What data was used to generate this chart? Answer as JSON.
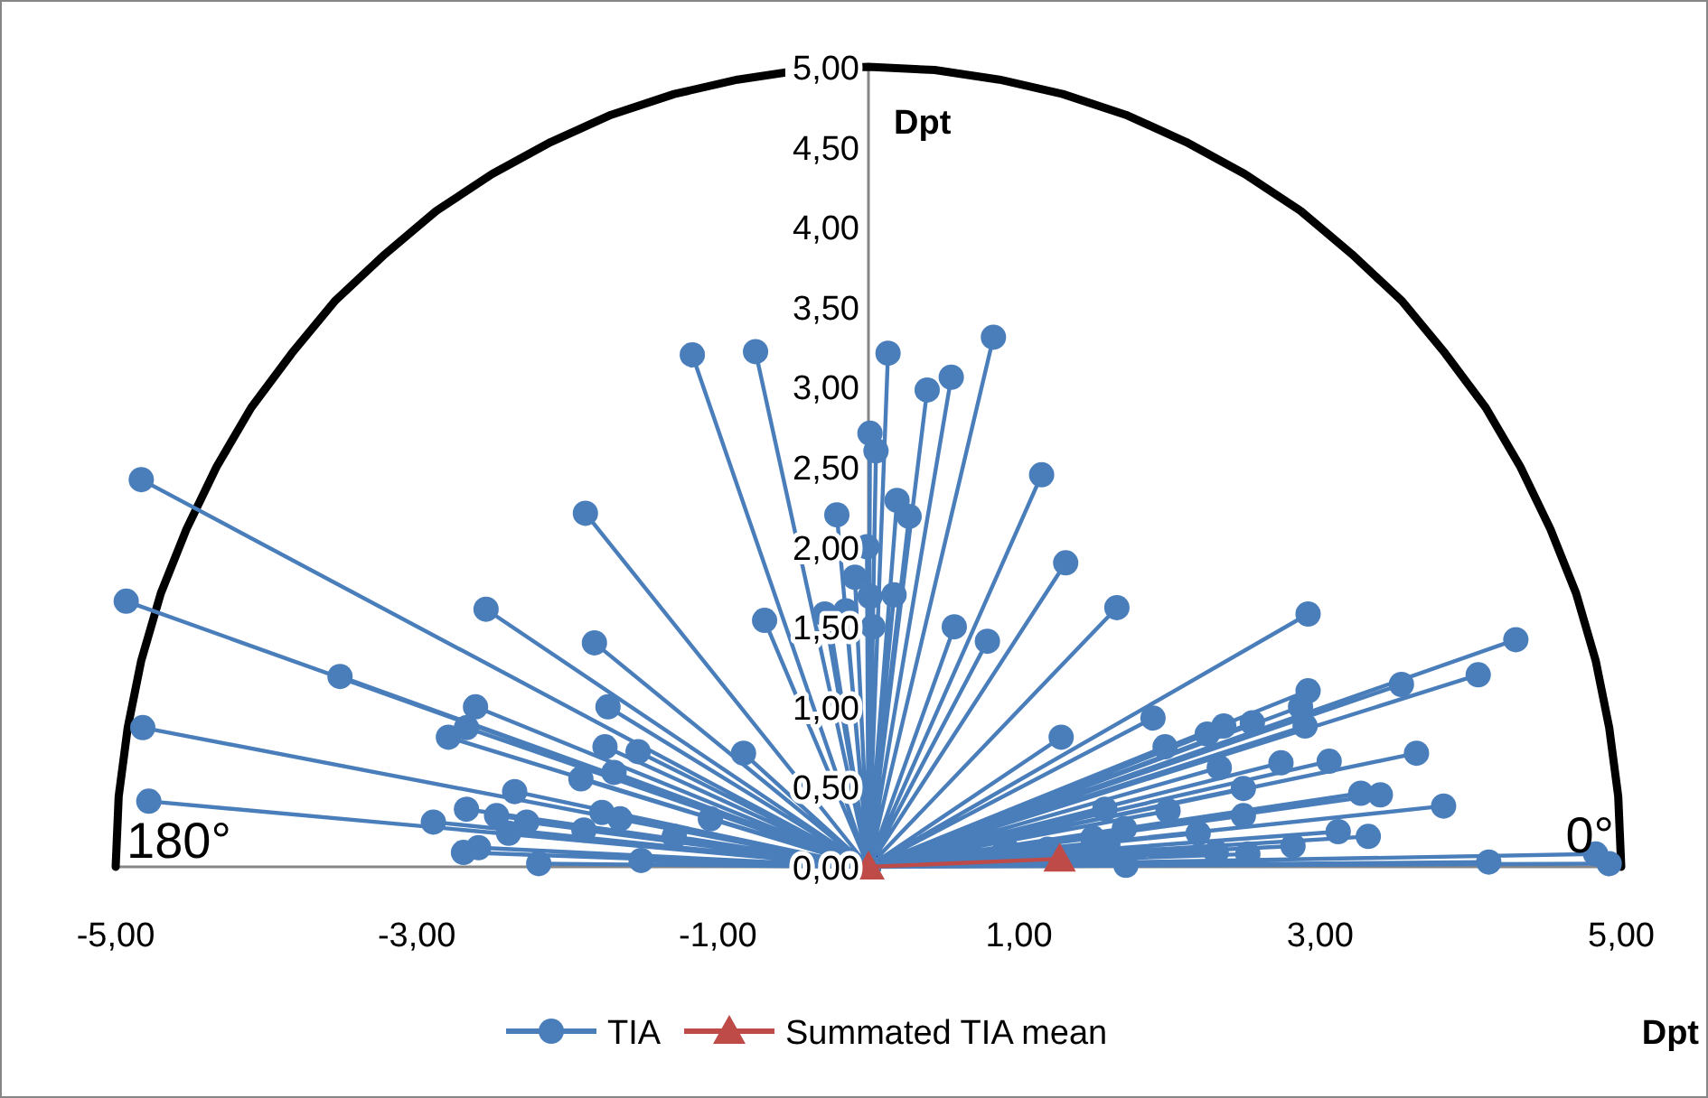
{
  "chart_data": {
    "type": "line",
    "xlabel": "Dpt",
    "ylabel": "Dpt",
    "annotations": [
      "180°",
      "0°"
    ],
    "xlim": [
      -5,
      5
    ],
    "ylim": [
      0,
      5
    ],
    "xticks": [
      {
        "value": -5,
        "label": "-5,00"
      },
      {
        "value": -3,
        "label": "-3,00"
      },
      {
        "value": -1,
        "label": "-1,00"
      },
      {
        "value": 1,
        "label": "1,00"
      },
      {
        "value": 3,
        "label": "3,00"
      },
      {
        "value": 5,
        "label": "5,00"
      }
    ],
    "yticks": [
      {
        "value": 0,
        "label": "0,00"
      },
      {
        "value": 0.5,
        "label": "0,50"
      },
      {
        "value": 1,
        "label": "1,00"
      },
      {
        "value": 1.5,
        "label": "1,50"
      },
      {
        "value": 2,
        "label": "2,00"
      },
      {
        "value": 2.5,
        "label": "2,50"
      },
      {
        "value": 3,
        "label": "3,00"
      },
      {
        "value": 3.5,
        "label": "3,50"
      },
      {
        "value": 4,
        "label": "4,00"
      },
      {
        "value": 4.5,
        "label": "4,50"
      },
      {
        "value": 5,
        "label": "5,00"
      }
    ],
    "grid": false,
    "legend": "bottom",
    "series": [
      {
        "type": "line",
        "color": "#000000",
        "marker": "none",
        "x": [
          5,
          4.98,
          4.92,
          4.83,
          4.7,
          4.53,
          4.33,
          4.1,
          3.83,
          3.54,
          3.21,
          2.87,
          2.5,
          2.11,
          1.71,
          1.29,
          0.87,
          0.44,
          0,
          -0.44,
          -0.87,
          -1.29,
          -1.71,
          -2.11,
          -2.5,
          -2.87,
          -3.21,
          -3.54,
          -3.83,
          -4.1,
          -4.33,
          -4.53,
          -4.7,
          -4.83,
          -4.92,
          -4.98,
          -5
        ],
        "values": [
          0,
          0.44,
          0.87,
          1.29,
          1.71,
          2.11,
          2.5,
          2.87,
          3.21,
          3.54,
          3.83,
          4.1,
          4.33,
          4.53,
          4.7,
          4.83,
          4.92,
          4.98,
          5,
          4.98,
          4.92,
          4.83,
          4.7,
          4.53,
          4.33,
          4.1,
          3.83,
          3.54,
          3.21,
          2.87,
          2.5,
          2.11,
          1.71,
          1.29,
          0.87,
          0.44,
          0
        ]
      },
      {
        "type": "line",
        "name": "TIA",
        "color": "#4a7ebb",
        "marker": "circle",
        "x": [
          0,
          -4.83,
          0,
          -4.93,
          0,
          -3.51,
          0,
          -4.82,
          0,
          -4.78,
          0,
          -1.88,
          0,
          -2.54,
          0,
          -1.82,
          0,
          -1.73,
          0,
          -2.61,
          0,
          -2.79,
          0,
          -2.67,
          0,
          -1.75,
          0,
          -1.53,
          0,
          -0.83,
          0,
          -2.35,
          0,
          -1.91,
          0,
          -1.69,
          0,
          -2.89,
          0,
          -2.67,
          0,
          -2.47,
          0,
          -2.27,
          0,
          -2.39,
          0,
          -2.69,
          0,
          -2.59,
          0,
          -2.19,
          0,
          -1.77,
          0,
          -1.65,
          0,
          -1.89,
          0,
          -1.51,
          0,
          -1.05,
          0,
          -1.29,
          0,
          -0.69,
          0,
          -0.21,
          0,
          -0.01,
          0,
          -0.09,
          0,
          -0.29,
          0,
          -0.15,
          0,
          -0.25,
          0,
          0.03,
          0,
          -1.17,
          0,
          -0.75,
          0,
          0.13,
          0,
          0.83,
          0,
          0.39,
          0,
          0.55,
          0,
          0.01,
          0,
          0.05,
          0,
          1.15,
          0,
          0.19,
          0,
          0.27,
          0,
          1.31,
          0,
          0.17,
          0,
          0.01,
          0,
          0.57,
          0,
          0.79,
          0,
          1.65,
          0,
          2.92,
          0,
          4.3,
          0,
          4.05,
          0,
          3.54,
          0,
          2.92,
          0,
          2.87,
          0,
          2.9,
          0,
          2.55,
          0,
          2.36,
          0,
          2.25,
          0,
          1.97,
          0,
          1.89,
          0,
          1.28,
          0,
          3.64,
          0,
          3.06,
          0,
          2.74,
          0,
          2.33,
          0,
          2.49,
          0,
          3.82,
          0,
          3.4,
          0,
          3.27,
          0,
          2.49,
          0,
          1.99,
          0,
          1.57,
          0,
          3.32,
          0,
          3.12,
          0,
          2.82,
          0,
          2.19,
          0,
          1.7,
          0,
          1.59,
          0,
          2.31,
          0,
          2.52,
          0,
          1.71,
          0,
          4.12,
          0,
          4.83,
          0,
          4.92,
          0,
          0.91,
          0,
          1.19,
          0,
          1.49
        ],
        "values": [
          0,
          2.42,
          0,
          1.66,
          0,
          1.19,
          0,
          0.87,
          0,
          0.41,
          0,
          2.21,
          0,
          1.61,
          0,
          1.4,
          0,
          1.0,
          0,
          1.0,
          0,
          0.81,
          0,
          0.87,
          0,
          0.75,
          0,
          0.72,
          0,
          0.71,
          0,
          0.47,
          0,
          0.55,
          0,
          0.59,
          0,
          0.28,
          0,
          0.36,
          0,
          0.32,
          0,
          0.28,
          0,
          0.21,
          0,
          0.09,
          0,
          0.12,
          0,
          0.02,
          0,
          0.34,
          0,
          0.3,
          0,
          0.23,
          0,
          0.04,
          0,
          0.3,
          0,
          0.19,
          0,
          1.54,
          0,
          2.2,
          0,
          2.0,
          0,
          1.81,
          0,
          1.58,
          0,
          1.6,
          0,
          1.48,
          0,
          1.5,
          0,
          3.2,
          0,
          3.22,
          0,
          3.21,
          0,
          3.31,
          0,
          2.98,
          0,
          3.06,
          0,
          2.71,
          0,
          2.6,
          0,
          2.45,
          0,
          2.29,
          0,
          2.19,
          0,
          1.9,
          0,
          1.7,
          0,
          1.69,
          0,
          1.5,
          0,
          1.41,
          0,
          1.62,
          0,
          1.58,
          0,
          1.42,
          0,
          1.2,
          0,
          1.14,
          0,
          1.1,
          0,
          1.0,
          0,
          0.88,
          0,
          0.9,
          0,
          0.88,
          0,
          0.83,
          0,
          0.75,
          0,
          0.93,
          0,
          0.81,
          0,
          0.71,
          0,
          0.66,
          0,
          0.65,
          0,
          0.62,
          0,
          0.49,
          0,
          0.38,
          0,
          0.45,
          0,
          0.46,
          0,
          0.32,
          0,
          0.35,
          0,
          0.36,
          0,
          0.19,
          0,
          0.22,
          0,
          0.13,
          0,
          0.21,
          0,
          0.24,
          0,
          0.14,
          0,
          0.09,
          0,
          0.08,
          0,
          0.01,
          0,
          0.03,
          0,
          0.08,
          0,
          0.02,
          0,
          0.12,
          0,
          0.11,
          0,
          0.18
        ]
      },
      {
        "type": "line",
        "name": "Summated TIA mean",
        "color": "#be4b48",
        "marker": "triangle",
        "x": [
          0,
          1.27
        ],
        "values": [
          0,
          0.05
        ]
      }
    ]
  }
}
